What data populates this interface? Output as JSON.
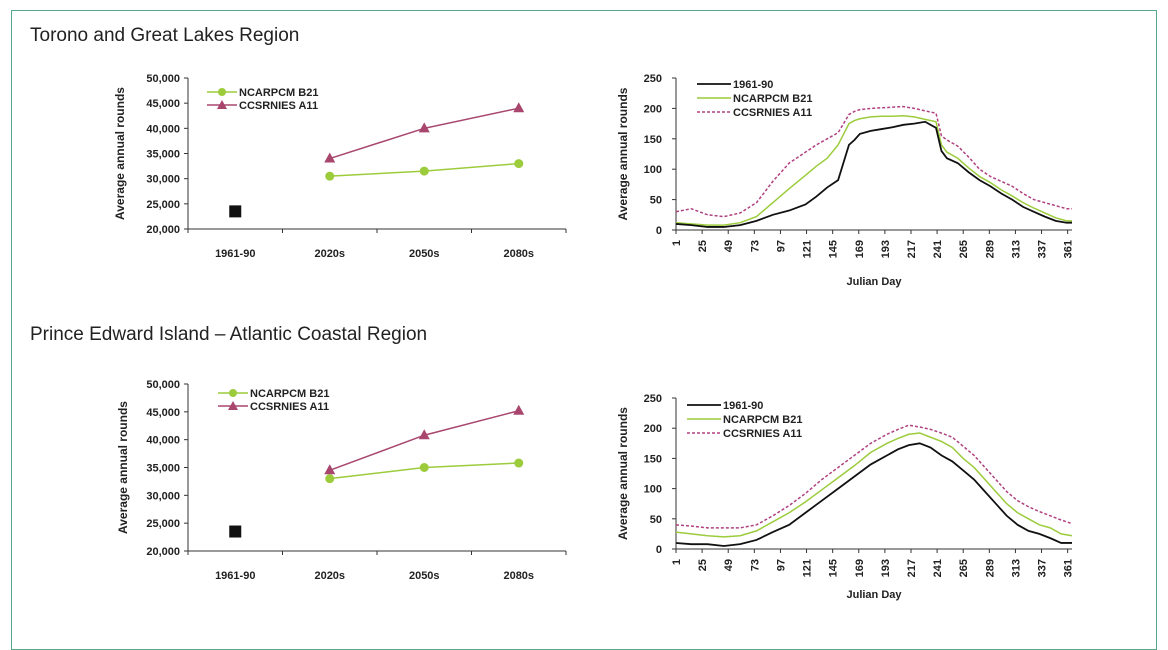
{
  "regions": [
    {
      "title": "Torono and Great Lakes Region"
    },
    {
      "title": "Prince Edward Island – Atlantic Coastal Region"
    }
  ],
  "colors": {
    "baseline": "#111111",
    "ncar": "#9ccc3c",
    "ccsr": "#a8466e",
    "ccsr_dash": "#b04080",
    "axis": "#333333",
    "frame": "#5aa88a"
  },
  "chart_data": [
    {
      "type": "line",
      "region": "Torono and Great Lakes Region",
      "ylabel": "Average annual rounds",
      "categories": [
        "1961-90",
        "2020s",
        "2050s",
        "2080s"
      ],
      "yticks": [
        "20,000",
        "25,000",
        "30,000",
        "35,000",
        "40,000",
        "45,000",
        "50,000"
      ],
      "ylim": [
        20000,
        50000
      ],
      "baseline": {
        "category": "1961-90",
        "value": 23500
      },
      "series": [
        {
          "name": "NCARPCM B21",
          "values": [
            null,
            30500,
            31500,
            33000
          ]
        },
        {
          "name": "CCSRNIES A11",
          "values": [
            null,
            34000,
            40000,
            44000
          ]
        }
      ]
    },
    {
      "type": "line",
      "region": "Torono and Great Lakes Region",
      "ylabel": "Average annual rounds",
      "xlabel": "Julian Day",
      "xticks": [
        "1",
        "25",
        "49",
        "73",
        "97",
        "121",
        "145",
        "169",
        "193",
        "217",
        "241",
        "265",
        "289",
        "313",
        "337",
        "361"
      ],
      "yticks": [
        "0",
        "50",
        "100",
        "150",
        "200",
        "250"
      ],
      "xlim": [
        1,
        365
      ],
      "ylim": [
        0,
        250
      ],
      "series": [
        {
          "name": "1961-90",
          "x": [
            1,
            15,
            30,
            45,
            60,
            75,
            90,
            105,
            120,
            130,
            140,
            150,
            160,
            165,
            170,
            180,
            190,
            200,
            210,
            220,
            230,
            240,
            245,
            250,
            260,
            270,
            280,
            290,
            300,
            310,
            320,
            330,
            340,
            350,
            360,
            365
          ],
          "values": [
            10,
            8,
            5,
            5,
            8,
            15,
            25,
            32,
            42,
            55,
            70,
            82,
            140,
            148,
            158,
            163,
            166,
            169,
            173,
            175,
            178,
            168,
            130,
            118,
            110,
            95,
            82,
            72,
            60,
            50,
            38,
            30,
            22,
            15,
            12,
            12
          ]
        },
        {
          "name": "NCARPCM B21",
          "x": [
            1,
            15,
            30,
            45,
            60,
            75,
            90,
            105,
            120,
            130,
            140,
            150,
            160,
            165,
            170,
            180,
            190,
            200,
            210,
            220,
            230,
            240,
            245,
            250,
            260,
            270,
            280,
            290,
            300,
            310,
            320,
            330,
            340,
            350,
            360,
            365
          ],
          "values": [
            12,
            10,
            8,
            8,
            12,
            22,
            45,
            68,
            90,
            105,
            118,
            140,
            175,
            180,
            183,
            186,
            187,
            187,
            188,
            186,
            182,
            178,
            140,
            128,
            118,
            102,
            88,
            78,
            66,
            56,
            45,
            36,
            28,
            20,
            15,
            15
          ]
        },
        {
          "name": "CCSRNIES A11",
          "x": [
            1,
            15,
            30,
            45,
            60,
            75,
            90,
            105,
            120,
            130,
            140,
            150,
            160,
            165,
            170,
            180,
            190,
            200,
            210,
            220,
            230,
            240,
            245,
            250,
            260,
            270,
            280,
            290,
            300,
            310,
            320,
            330,
            340,
            350,
            360,
            365
          ],
          "values": [
            30,
            35,
            25,
            22,
            28,
            45,
            80,
            110,
            128,
            140,
            150,
            160,
            190,
            195,
            198,
            200,
            201,
            202,
            203,
            200,
            196,
            192,
            155,
            148,
            138,
            120,
            100,
            88,
            80,
            72,
            60,
            50,
            45,
            40,
            35,
            35
          ]
        }
      ]
    },
    {
      "type": "line",
      "region": "Prince Edward Island – Atlantic Coastal Region",
      "ylabel": "Average annual rounds",
      "categories": [
        "1961-90",
        "2020s",
        "2050s",
        "2080s"
      ],
      "yticks": [
        "20,000",
        "25,000",
        "30,000",
        "35,000",
        "40,000",
        "45,000",
        "50,000"
      ],
      "ylim": [
        20000,
        50000
      ],
      "baseline": {
        "category": "1961-90",
        "value": 23500
      },
      "series": [
        {
          "name": "NCARPCM B21",
          "values": [
            null,
            33000,
            35000,
            35800
          ]
        },
        {
          "name": "CCSRNIES A11",
          "values": [
            null,
            34500,
            40800,
            45200
          ]
        }
      ]
    },
    {
      "type": "line",
      "region": "Prince Edward Island – Atlantic Coastal Region",
      "ylabel": "Average annual rounds",
      "xlabel": "Julian Day",
      "xticks": [
        "1",
        "25",
        "49",
        "73",
        "97",
        "121",
        "145",
        "169",
        "193",
        "217",
        "241",
        "265",
        "289",
        "313",
        "337",
        "361"
      ],
      "yticks": [
        "0",
        "50",
        "100",
        "150",
        "200",
        "250"
      ],
      "xlim": [
        1,
        365
      ],
      "ylim": [
        0,
        250
      ],
      "series": [
        {
          "name": "1961-90",
          "x": [
            1,
            15,
            30,
            45,
            60,
            75,
            90,
            105,
            120,
            135,
            150,
            165,
            180,
            195,
            205,
            215,
            225,
            235,
            245,
            255,
            265,
            275,
            285,
            295,
            305,
            315,
            325,
            335,
            345,
            355,
            365
          ],
          "values": [
            10,
            8,
            8,
            5,
            8,
            15,
            28,
            40,
            60,
            80,
            100,
            120,
            140,
            155,
            165,
            172,
            175,
            168,
            155,
            145,
            130,
            115,
            95,
            75,
            55,
            40,
            30,
            25,
            18,
            10,
            10
          ]
        },
        {
          "name": "NCARPCM B21",
          "x": [
            1,
            15,
            30,
            45,
            60,
            75,
            90,
            105,
            120,
            135,
            150,
            165,
            180,
            195,
            205,
            215,
            225,
            235,
            245,
            255,
            265,
            275,
            285,
            295,
            305,
            315,
            325,
            335,
            345,
            355,
            365
          ],
          "values": [
            28,
            25,
            22,
            20,
            22,
            30,
            45,
            60,
            78,
            98,
            118,
            138,
            160,
            175,
            183,
            190,
            192,
            185,
            178,
            168,
            150,
            135,
            115,
            95,
            75,
            60,
            50,
            40,
            35,
            25,
            22
          ]
        },
        {
          "name": "CCSRNIES A11",
          "x": [
            1,
            15,
            30,
            45,
            60,
            75,
            90,
            105,
            120,
            135,
            150,
            165,
            180,
            195,
            205,
            215,
            225,
            235,
            245,
            255,
            265,
            275,
            285,
            295,
            305,
            315,
            325,
            335,
            345,
            355,
            365
          ],
          "values": [
            40,
            38,
            35,
            35,
            35,
            40,
            55,
            72,
            92,
            115,
            135,
            155,
            175,
            190,
            198,
            205,
            202,
            198,
            192,
            185,
            170,
            155,
            135,
            115,
            95,
            80,
            70,
            62,
            55,
            48,
            42
          ]
        }
      ]
    }
  ]
}
